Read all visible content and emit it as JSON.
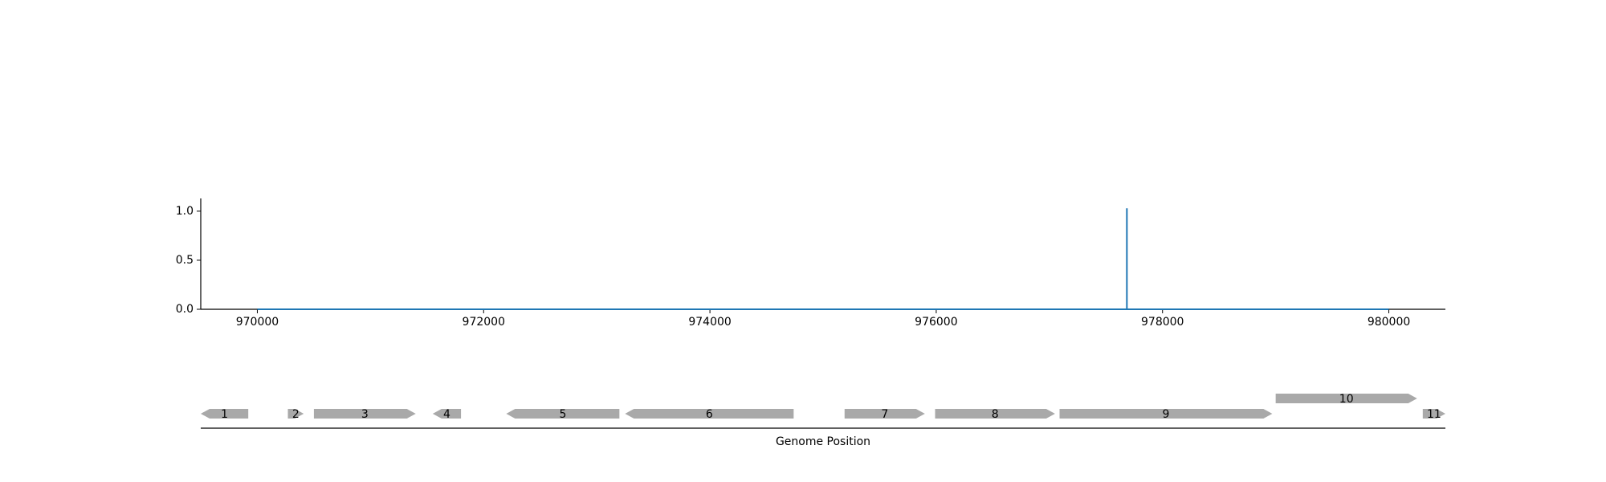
{
  "chart_data": [
    {
      "type": "line",
      "title": "",
      "xlabel": "",
      "ylabel": "",
      "xlim": [
        969500,
        980500
      ],
      "ylim": [
        0,
        1.13
      ],
      "x_ticks": [
        970000,
        972000,
        974000,
        976000,
        978000,
        980000
      ],
      "x_tick_labels": [
        "970000",
        "972000",
        "974000",
        "976000",
        "978000",
        "980000"
      ],
      "y_ticks": [
        0.0,
        0.5,
        1.0
      ],
      "y_tick_labels": [
        "0.0",
        "0.5",
        "1.0"
      ],
      "grid": false,
      "series": [
        {
          "color": "#1f77b4",
          "x": [
            970000,
            977685,
            977685,
            977685,
            977700,
            980000
          ],
          "y": [
            0,
            0,
            1.03,
            0,
            0,
            0
          ]
        }
      ]
    },
    {
      "type": "gene_track",
      "xlabel": "Genome Position",
      "xlim": [
        969500,
        980500
      ],
      "gene_color": "#a9a9a9",
      "genes": [
        {
          "label": "1",
          "start": 969500,
          "end": 969920,
          "strand": "-",
          "row": 0
        },
        {
          "label": "2",
          "start": 970270,
          "end": 970410,
          "strand": "+",
          "row": 0
        },
        {
          "label": "3",
          "start": 970500,
          "end": 971400,
          "strand": "+",
          "row": 0
        },
        {
          "label": "4",
          "start": 971550,
          "end": 971800,
          "strand": "-",
          "row": 0
        },
        {
          "label": "5",
          "start": 972200,
          "end": 973200,
          "strand": "-",
          "row": 0
        },
        {
          "label": "6",
          "start": 973250,
          "end": 974740,
          "strand": "-",
          "row": 0
        },
        {
          "label": "7",
          "start": 975190,
          "end": 975900,
          "strand": "+",
          "row": 0
        },
        {
          "label": "8",
          "start": 975990,
          "end": 977050,
          "strand": "+",
          "row": 0
        },
        {
          "label": "9",
          "start": 977090,
          "end": 978970,
          "strand": "+",
          "row": 0
        },
        {
          "label": "10",
          "start": 979000,
          "end": 980250,
          "strand": "+",
          "row": 1
        },
        {
          "label": "11",
          "start": 980300,
          "end": 980500,
          "strand": "+",
          "row": 0
        }
      ]
    }
  ]
}
